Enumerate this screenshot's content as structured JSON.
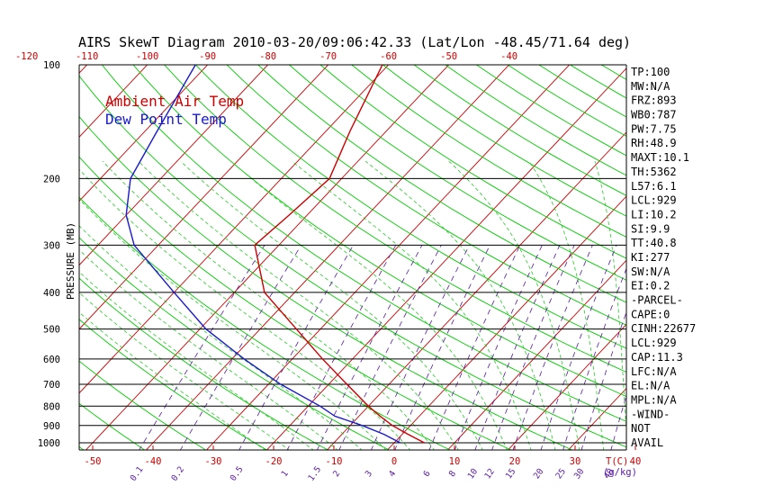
{
  "chart_data": {
    "type": "line",
    "title": "AIRS SkewT Diagram 2010-03-20/09:06:42.33 (Lat/Lon -48.45/71.64 deg)",
    "ylabel": "PRESSURE (MB)",
    "pressure_ticks": [
      100,
      200,
      300,
      400,
      500,
      600,
      700,
      800,
      900,
      1000
    ],
    "temp_ticks_top": [
      -120,
      -110,
      -100,
      -90,
      -80,
      -70,
      -60,
      -50,
      -40
    ],
    "temp_ticks_bottom": [
      -50,
      -40,
      -30,
      -20,
      -10,
      0,
      10,
      20,
      30,
      40
    ],
    "temp_unit_label": "T(C)",
    "mixing_ratio_ticks": [
      "0.1",
      "0.2",
      "0.5",
      "1",
      "1.5",
      "2",
      "3",
      "4",
      "6",
      "8",
      "10",
      "12",
      "15",
      "20",
      "25",
      "30",
      "40"
    ],
    "mixing_ratio_unit_label": "(g/kg)",
    "legend": [
      {
        "name": "Ambient Air Temp",
        "color": "#cc0000"
      },
      {
        "name": "Dew Point Temp",
        "color": "#1a1acc"
      }
    ],
    "series": [
      {
        "name": "Ambient Air Temp",
        "color": "#cc0000",
        "points": [
          {
            "p": 1000,
            "t": 5
          },
          {
            "p": 950,
            "t": 1
          },
          {
            "p": 900,
            "t": -3
          },
          {
            "p": 850,
            "t": -6.5
          },
          {
            "p": 800,
            "t": -10
          },
          {
            "p": 700,
            "t": -17
          },
          {
            "p": 600,
            "t": -25
          },
          {
            "p": 500,
            "t": -34
          },
          {
            "p": 400,
            "t": -45
          },
          {
            "p": 300,
            "t": -54
          },
          {
            "p": 250,
            "t": -53
          },
          {
            "p": 200,
            "t": -52
          },
          {
            "p": 150,
            "t": -56
          },
          {
            "p": 100,
            "t": -61
          }
        ]
      },
      {
        "name": "Dew Point Temp",
        "color": "#1a1acc",
        "points": [
          {
            "p": 1000,
            "t": 1
          },
          {
            "p": 950,
            "t": -3
          },
          {
            "p": 900,
            "t": -8
          },
          {
            "p": 850,
            "t": -14
          },
          {
            "p": 800,
            "t": -18
          },
          {
            "p": 700,
            "t": -28
          },
          {
            "p": 600,
            "t": -38
          },
          {
            "p": 500,
            "t": -49
          },
          {
            "p": 400,
            "t": -60
          },
          {
            "p": 300,
            "t": -74
          },
          {
            "p": 250,
            "t": -80
          },
          {
            "p": 200,
            "t": -85
          },
          {
            "p": 150,
            "t": -88
          },
          {
            "p": 100,
            "t": -92
          }
        ]
      }
    ],
    "indices": [
      "TP:100",
      "MW:N/A",
      "FRZ:893",
      "WB0:787",
      "PW:7.75",
      "RH:48.9",
      "MAXT:10.1",
      "TH:5362",
      "L57:6.1",
      "LCL:929",
      "LI:10.2",
      "SI:9.9",
      "TT:40.8",
      "KI:277",
      "SW:N/A",
      "EI:0.2",
      "-PARCEL-",
      "CAPE:0",
      "CINH:22677",
      "LCL:929",
      "CAP:11.3",
      "LFC:N/A",
      "EL:N/A",
      "MPL:N/A",
      "-WIND-",
      "NOT",
      "AVAIL"
    ],
    "colors": {
      "isotherm": "#cc0000",
      "dry_adiabat": "#00cc00",
      "moist_adiabat": "#22cc22",
      "mixing_ratio": "#5a1aa0",
      "isobar": "#000000"
    }
  }
}
